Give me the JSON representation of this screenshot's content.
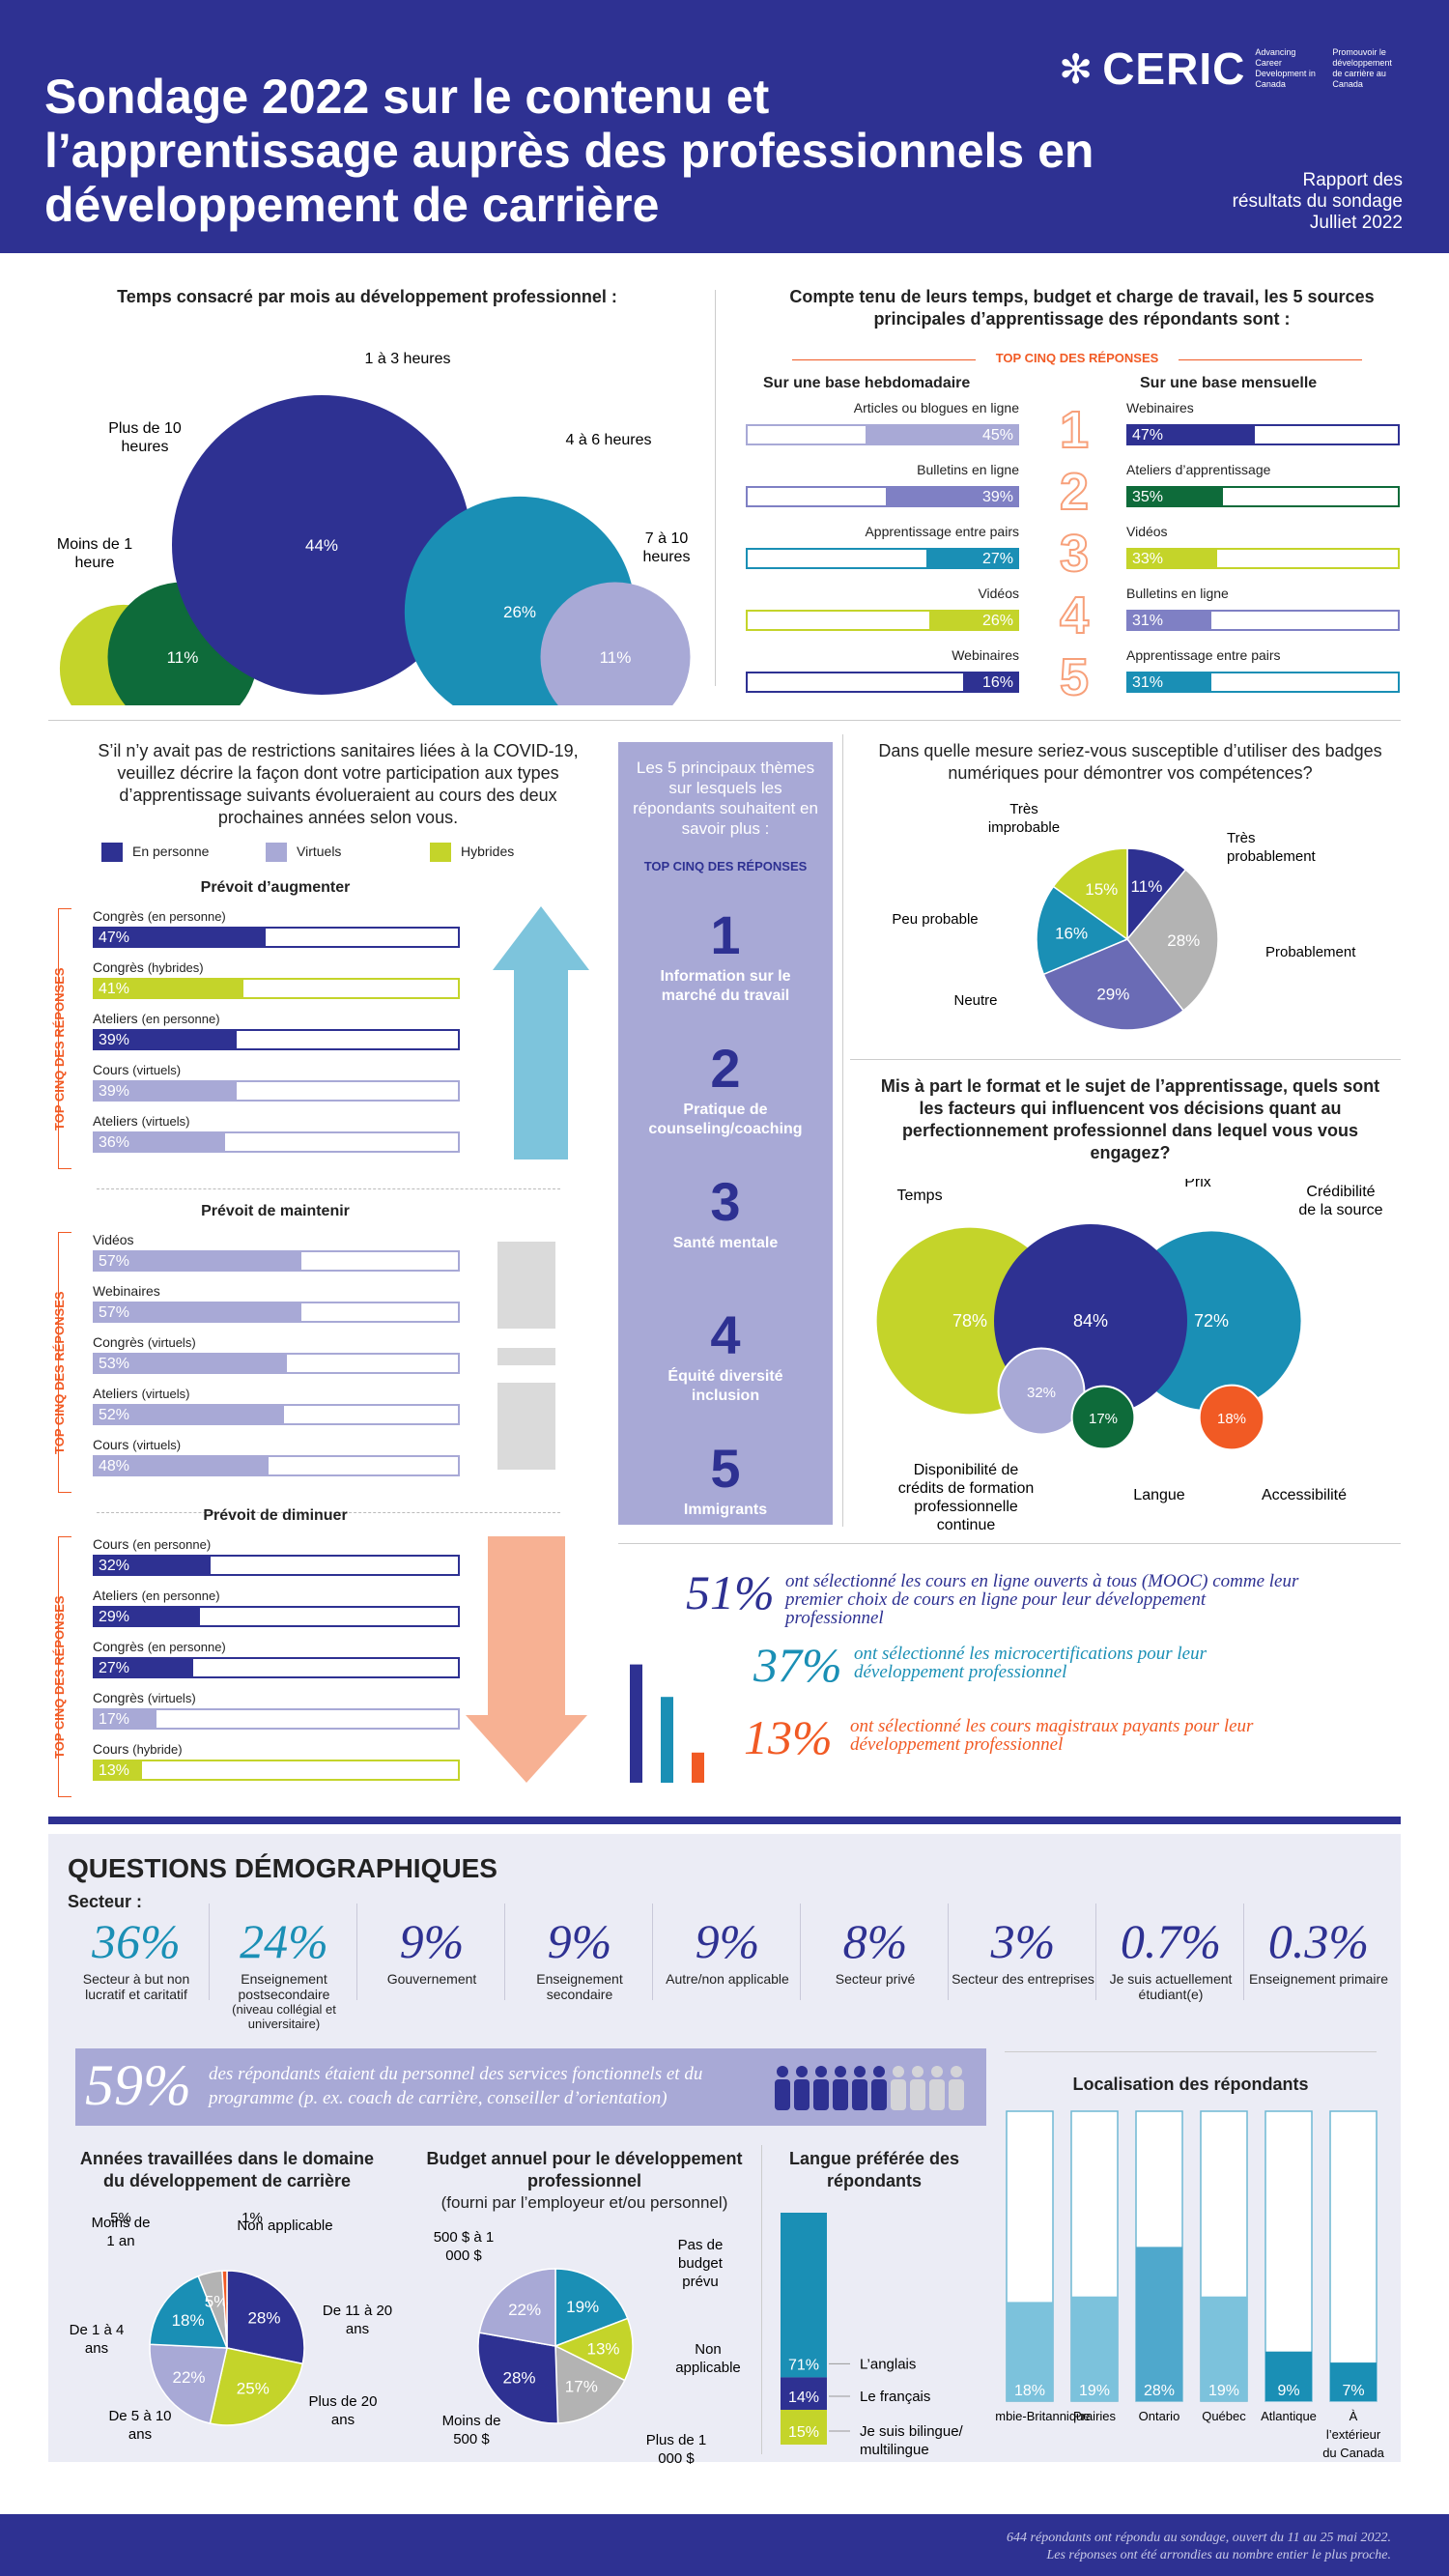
{
  "header": {
    "title": "Sondage 2022 sur le contenu et l’apprentissage auprès des professionnels en développement de carrière",
    "logo": "CERIC",
    "logo_en": "Advancing Career Development in Canada",
    "logo_fr": "Promouvoir le développement de carrière au Canada",
    "report_line1": "Rapport des",
    "report_line2": "résultats du sondage",
    "report_line3": "Julliet 2022"
  },
  "chart_data": [
    {
      "type": "bubble",
      "title": "Temps consacré par mois au développement professionnel :",
      "categories": [
        "Moins de 1 heure",
        "Plus de 10 heures",
        "1 à 3 heures",
        "4 à 6 heures",
        "7 à 10 heures"
      ],
      "values": [
        8,
        11,
        44,
        26,
        11
      ],
      "colors": [
        "#c4d42a",
        "#0e6b3a",
        "#2e3192",
        "#1a8fb5",
        "#a8a9d6"
      ]
    },
    {
      "type": "bar",
      "title": "Compte tenu de leurs temps, budget et charge de travail, les 5 sources principales d’apprentissage des répondants sont :",
      "banner": "TOP CINQ DES RÉPONSES",
      "weekly_title": "Sur une base hebdomadaire",
      "monthly_title": "Sur une base mensuelle",
      "weekly": [
        {
          "label": "Articles ou blogues en ligne",
          "value": 45,
          "color": "#a8a9d6"
        },
        {
          "label": "Bulletins en ligne",
          "value": 39,
          "color": "#7f80c4"
        },
        {
          "label": "Apprentissage entre pairs",
          "value": 27,
          "color": "#1a8fb5"
        },
        {
          "label": "Vidéos",
          "value": 26,
          "color": "#c4d42a"
        },
        {
          "label": "Webinaires",
          "value": 16,
          "color": "#2e3192"
        }
      ],
      "monthly": [
        {
          "label": "Webinaires",
          "value": 47,
          "color": "#2e3192"
        },
        {
          "label": "Ateliers d’apprentissage",
          "value": 35,
          "color": "#0e6b3a"
        },
        {
          "label": "Vidéos",
          "value": 33,
          "color": "#c4d42a"
        },
        {
          "label": "Bulletins en ligne",
          "value": 31,
          "color": "#7f80c4"
        },
        {
          "label": "Apprentissage entre pairs",
          "value": 31,
          "color": "#1a8fb5"
        }
      ],
      "ranks": [
        "1",
        "2",
        "3",
        "4",
        "5"
      ]
    },
    {
      "type": "bar",
      "title": "S’il n’y avait pas de restrictions sanitaires liées à la COVID-19, veuillez décrire la façon dont votre participation aux types d’apprentissage suivants évolueraient au cours des deux prochaines années selon vous.",
      "legend": [
        {
          "name": "En personne",
          "color": "#2e3192"
        },
        {
          "name": "Virtuels",
          "color": "#a8a9d6"
        },
        {
          "name": "Hybrides",
          "color": "#c4d42a"
        }
      ],
      "side_label": "TOP CINQ DES RÉPONSES",
      "groups": [
        {
          "title": "Prévoit d’augmenter",
          "items": [
            {
              "label": "Congrès",
              "mode": "(en personne)",
              "value": 47,
              "color": "#2e3192"
            },
            {
              "label": "Congrès",
              "mode": "(hybrides)",
              "value": 41,
              "color": "#c4d42a"
            },
            {
              "label": "Ateliers",
              "mode": "(en personne)",
              "value": 39,
              "color": "#2e3192"
            },
            {
              "label": "Cours",
              "mode": "(virtuels)",
              "value": 39,
              "color": "#a8a9d6"
            },
            {
              "label": "Ateliers",
              "mode": "(virtuels)",
              "value": 36,
              "color": "#a8a9d6"
            }
          ]
        },
        {
          "title": "Prévoit de maintenir",
          "items": [
            {
              "label": "Vidéos",
              "mode": "",
              "value": 57,
              "color": "#a8a9d6"
            },
            {
              "label": "Webinaires",
              "mode": "",
              "value": 57,
              "color": "#a8a9d6"
            },
            {
              "label": "Congrès",
              "mode": "(virtuels)",
              "value": 53,
              "color": "#a8a9d6"
            },
            {
              "label": "Ateliers",
              "mode": "(virtuels)",
              "value": 52,
              "color": "#a8a9d6"
            },
            {
              "label": "Cours",
              "mode": "(virtuels)",
              "value": 48,
              "color": "#a8a9d6"
            }
          ]
        },
        {
          "title": "Prévoit de diminuer",
          "items": [
            {
              "label": "Cours",
              "mode": "(en personne)",
              "value": 32,
              "color": "#2e3192"
            },
            {
              "label": "Ateliers",
              "mode": "(en personne)",
              "value": 29,
              "color": "#2e3192"
            },
            {
              "label": "Congrès",
              "mode": "(en personne)",
              "value": 27,
              "color": "#2e3192"
            },
            {
              "label": "Congrès",
              "mode": "(virtuels)",
              "value": 17,
              "color": "#a8a9d6"
            },
            {
              "label": "Cours",
              "mode": "(hybride)",
              "value": 13,
              "color": "#c4d42a"
            }
          ]
        }
      ]
    },
    {
      "type": "pie",
      "title": "Dans quelle mesure seriez-vous susceptible d’utiliser des badges numériques pour démontrer vos compétences?",
      "categories": [
        "Très probablement",
        "Probablement",
        "Neutre",
        "Peu probable",
        "Très improbable"
      ],
      "values": [
        11,
        28,
        29,
        16,
        15
      ],
      "colors": [
        "#2e3192",
        "#b3b3b3",
        "#6a6bb5",
        "#1a8fb5",
        "#c4d42a"
      ]
    },
    {
      "type": "bubble",
      "title": "Mis à part le format et le sujet de l’apprentissage, quels sont les facteurs qui influencent vos décisions quant au perfectionnement professionnel dans lequel vous vous engagez?",
      "categories": [
        "Temps",
        "Prix",
        "Crédibilité de la source",
        "Disponibilité de crédits de formation professionnelle continue",
        "Langue",
        "Accessibilité"
      ],
      "values": [
        78,
        84,
        72,
        32,
        17,
        18
      ],
      "colors": [
        "#c4d42a",
        "#2e3192",
        "#1a8fb5",
        "#a8a9d6",
        "#0e6b3a",
        "#f15a24"
      ]
    },
    {
      "type": "bar",
      "title": "",
      "values": [
        51,
        37,
        13
      ],
      "colors": [
        "#2e3192",
        "#1a8fb5",
        "#f15a24"
      ],
      "texts": [
        "ont sélectionné les cours en ligne ouverts à tous (MOOC) comme leur premier choix de cours en ligne pour leur développement professionnel",
        "ont sélectionné les microcertifications pour leur développement professionnel",
        "ont sélectionné les cours magistraux payants pour leur développement professionnel"
      ]
    },
    {
      "type": "pie",
      "title": "Années travaillées dans le domaine du développement de carrière",
      "categories": [
        "De 11 à 20 ans",
        "Plus de 20 ans",
        "De 5 à 10 ans",
        "De 1 à 4 ans",
        "Moins de 1 an",
        "Non applicable"
      ],
      "values": [
        28,
        25,
        22,
        18,
        5,
        1
      ],
      "colors": [
        "#2e3192",
        "#c4d42a",
        "#a8a9d6",
        "#1a8fb5",
        "#b3b3b3",
        "#f15a24"
      ]
    },
    {
      "type": "pie",
      "title": "Budget annuel pour le développement professionnel",
      "subtitle": "(fourni par l’employeur et/ou personnel)",
      "categories": [
        "Pas de budget prévu",
        "Non applicable",
        "Plus de 1 000 $",
        "Moins de 500 $",
        "500 $ à 1 000 $"
      ],
      "values": [
        19,
        13,
        17,
        28,
        22
      ],
      "colors": [
        "#1a8fb5",
        "#c4d42a",
        "#b3b3b3",
        "#2e3192",
        "#a8a9d6"
      ]
    },
    {
      "type": "bar",
      "title": "Langue préférée des répondants",
      "categories": [
        "L’anglais",
        "Le français",
        "Je suis bilingue/ multilingue"
      ],
      "values": [
        71,
        14,
        15
      ],
      "colors": [
        "#1a8fb5",
        "#2e3192",
        "#c4d42a"
      ]
    },
    {
      "type": "bar",
      "title": "Localisation des répondants",
      "categories": [
        "Colombie-Britannique",
        "Prairies",
        "Ontario",
        "Québec",
        "Atlantique",
        "À l’extérieur du Canada"
      ],
      "values": [
        18,
        19,
        28,
        19,
        9,
        7
      ]
    }
  ],
  "demographics": {
    "title": "QUESTIONS DÉMOGRAPHIQUES",
    "sector_label": "Secteur :",
    "sectors": [
      {
        "value": "36%",
        "label": "Secteur à but non lucratif et caritatif"
      },
      {
        "value": "24%",
        "label": "Enseignement postsecondaire",
        "note": "(niveau collégial et universitaire)"
      },
      {
        "value": "9%",
        "label": "Gouvernement"
      },
      {
        "value": "9%",
        "label": "Enseignement secondaire"
      },
      {
        "value": "9%",
        "label": "Autre/non applicable"
      },
      {
        "value": "8%",
        "label": "Secteur privé"
      },
      {
        "value": "3%",
        "label": "Secteur des entreprises"
      },
      {
        "value": "0.7%",
        "label": "Je suis actuellement étudiant(e)"
      },
      {
        "value": "0.3%",
        "label": "Enseignement primaire"
      }
    ],
    "staff_value": "59%",
    "staff_text": "des répondants étaient du personnel des services fonctionnels et du programme (p. ex. coach de carrière, conseiller d’orientation)"
  },
  "themes": {
    "title": "Les 5 principaux thèmes sur lesquels les répondants souhaitent en savoir plus :",
    "banner": "TOP CINQ DES RÉPONSES",
    "items": [
      {
        "n": "1",
        "label": "Information sur le marché du travail"
      },
      {
        "n": "2",
        "label": "Pratique de counseling/coaching"
      },
      {
        "n": "3",
        "label": "Santé mentale"
      },
      {
        "n": "4",
        "label": "Équité diversité inclusion"
      },
      {
        "n": "5",
        "label": "Immigrants"
      }
    ]
  },
  "footer": {
    "line1": "644 répondants ont répondu au sondage, ouvert du 11 au 25 mai 2022.",
    "line2": "Les réponses ont été arrondies au nombre entier le plus proche."
  }
}
